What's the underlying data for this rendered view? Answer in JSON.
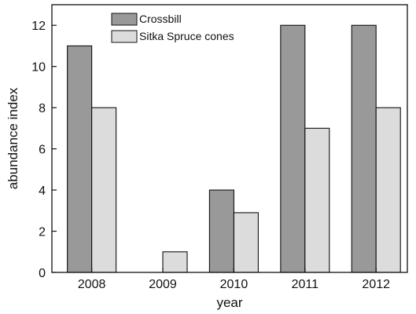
{
  "chart_data": {
    "type": "bar",
    "categories": [
      "2008",
      "2009",
      "2010",
      "2011",
      "2012"
    ],
    "series": [
      {
        "name": "Crossbill",
        "values": [
          11,
          0,
          4,
          12,
          12
        ],
        "color": "#999999"
      },
      {
        "name": "Sitka Spruce cones",
        "values": [
          8,
          1,
          2.9,
          7,
          8
        ],
        "color": "#dcdcdc"
      }
    ],
    "title": "",
    "xlabel": "year",
    "ylabel": "abundance index",
    "ylim": [
      0,
      13
    ],
    "yticks": [
      0,
      2,
      4,
      6,
      8,
      10,
      12
    ],
    "grid": false,
    "legend_position": "top-left"
  }
}
